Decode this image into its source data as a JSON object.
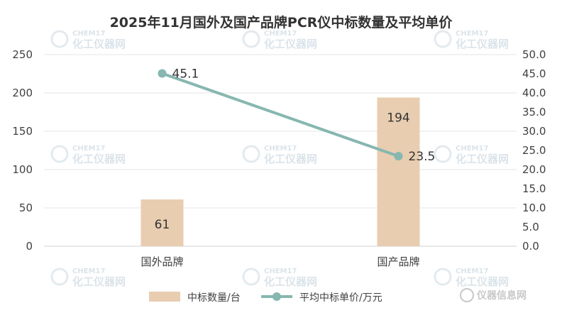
{
  "chart_data": {
    "type": "bar",
    "title": "2025年11月国外及国产品牌PCR仪中标数量及平均单价",
    "categories": [
      "国外品牌",
      "国产品牌"
    ],
    "series": [
      {
        "name": "中标数量/台",
        "type": "bar",
        "axis": "left",
        "values": [
          61,
          194
        ],
        "color": "#e8cdb0"
      },
      {
        "name": "平均中标单价/万元",
        "type": "line",
        "axis": "right",
        "values": [
          45.1,
          23.5
        ],
        "color": "#86b7b0"
      }
    ],
    "y_left": {
      "ylim": [
        0,
        250
      ],
      "ticks": [
        "0",
        "50",
        "100",
        "150",
        "200",
        "250"
      ]
    },
    "y_right": {
      "ylim": [
        0,
        50
      ],
      "ticks": [
        "0.0",
        "5.0",
        "10.0",
        "15.0",
        "20.0",
        "25.0",
        "30.0",
        "35.0",
        "40.0",
        "45.0",
        "50.0"
      ]
    },
    "bar_labels": [
      "61",
      "194"
    ],
    "line_labels": [
      "45.1",
      "23.5"
    ],
    "grid": true,
    "legend_position": "bottom"
  },
  "watermark": {
    "en": "CHEM17",
    "cn": "化工仪器网"
  },
  "brand": {
    "text": "仪器信息网"
  }
}
